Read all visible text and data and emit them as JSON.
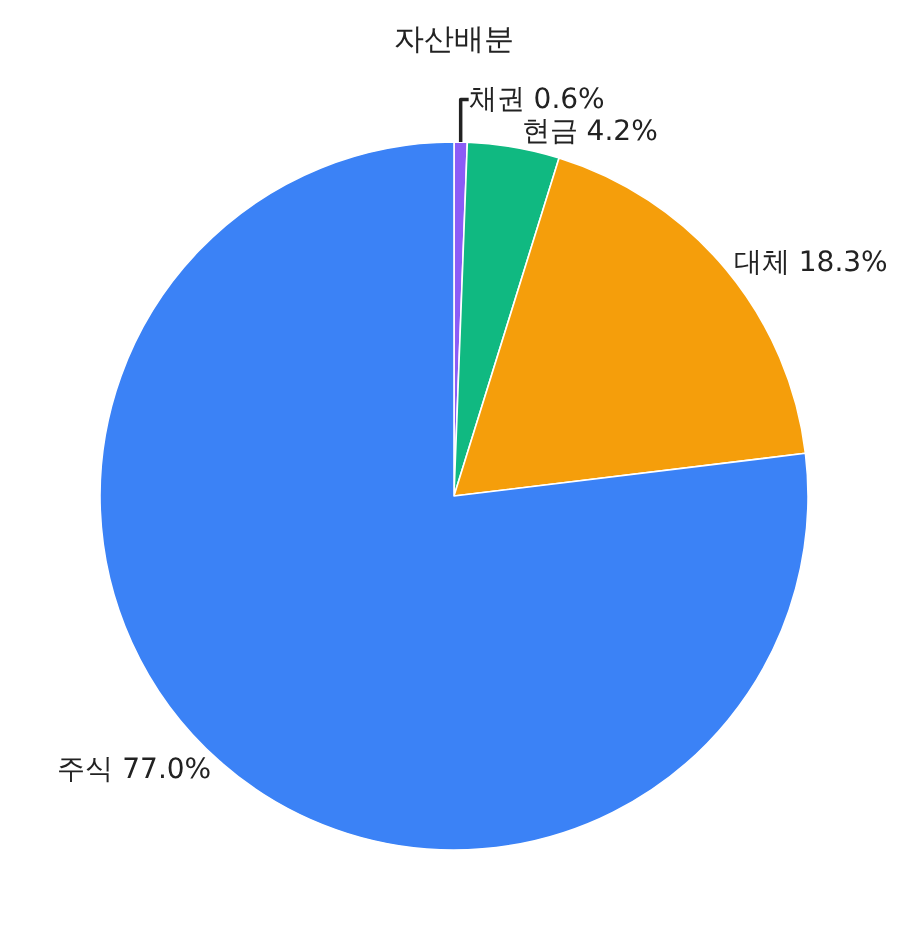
{
  "chart_data": {
    "type": "pie",
    "title": "자산배분",
    "categories": [
      "채권",
      "현금",
      "대체",
      "주식"
    ],
    "values": [
      0.6,
      4.2,
      18.3,
      77.0
    ],
    "value_labels": [
      "0.6%",
      "4.2%",
      "18.3%",
      "77.0%"
    ],
    "colors": [
      "#8b5cf6",
      "#10b981",
      "#f59e0b",
      "#3b82f6"
    ],
    "legend": false
  }
}
